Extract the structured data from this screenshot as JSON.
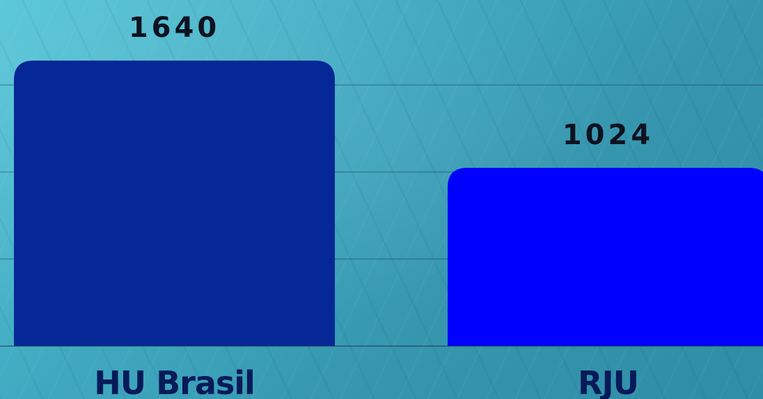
{
  "chart_data": {
    "type": "bar",
    "categories": [
      "HU Brasil",
      "RJU"
    ],
    "values": [
      1640,
      1024
    ],
    "value_labels": [
      "1640",
      "1024"
    ],
    "colors": [
      "#062896",
      "#0000fe"
    ],
    "ylim": [
      0,
      2000
    ],
    "grid": true,
    "legend": "none"
  }
}
